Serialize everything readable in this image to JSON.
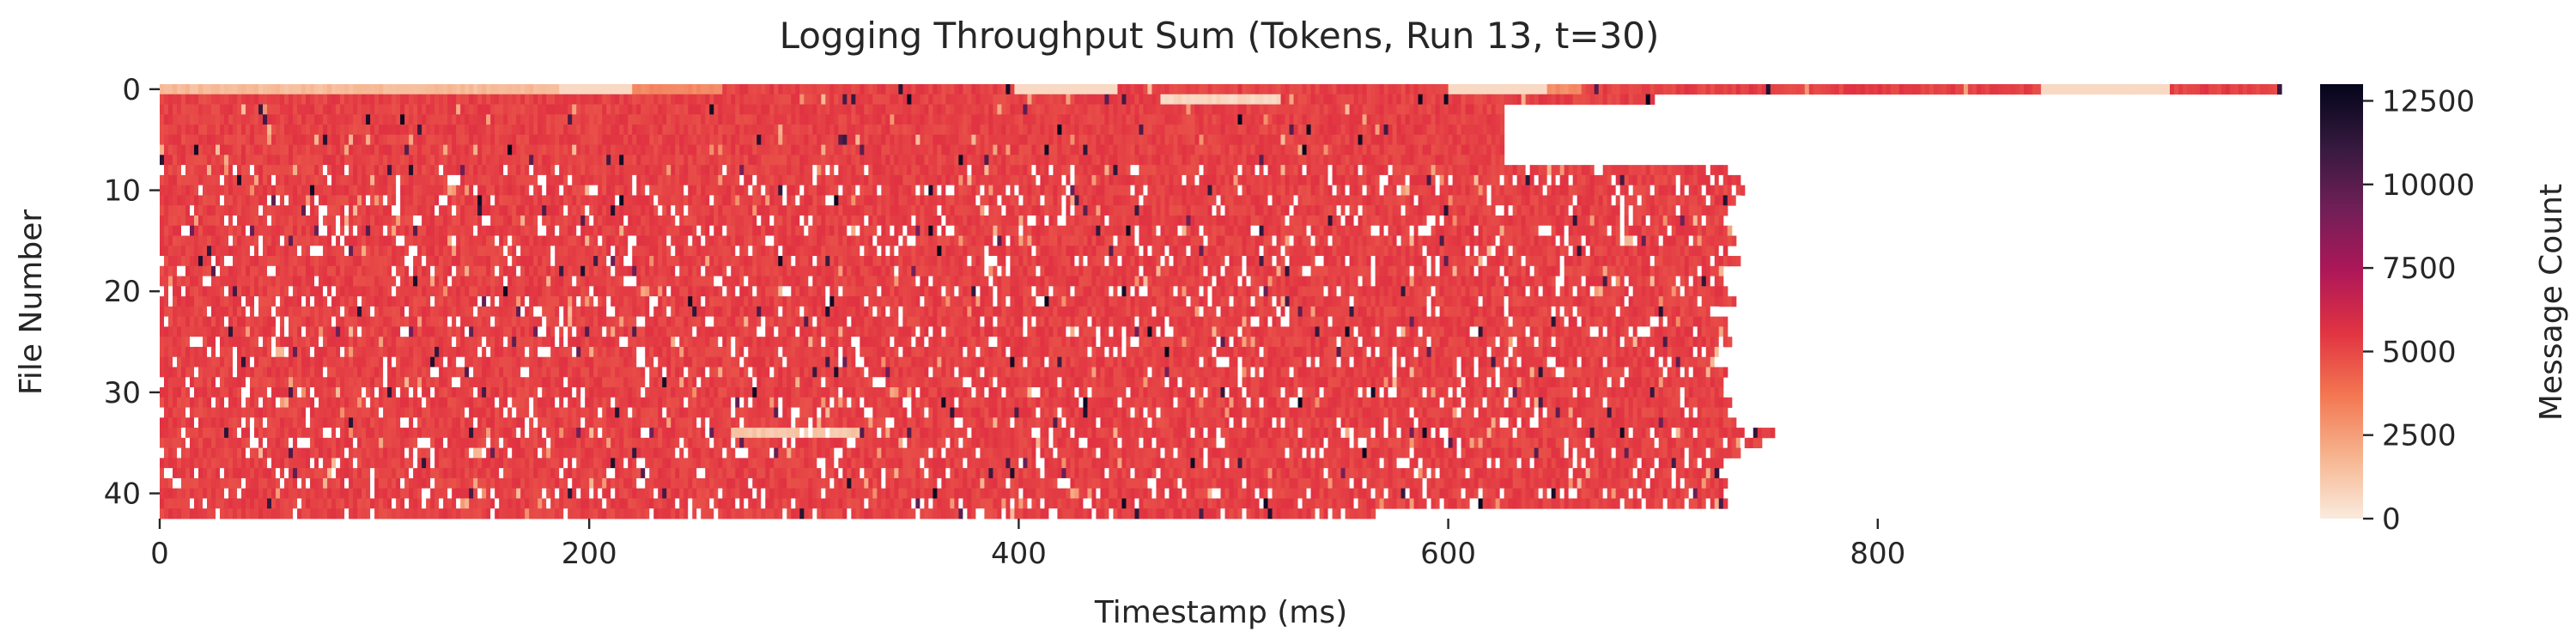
{
  "chart_data": {
    "type": "heatmap",
    "title": "Logging Throughput Sum (Tokens, Run 13, t=30)",
    "xlabel": "Timestamp (ms)",
    "ylabel": "File Number",
    "xlim": [
      0,
      990
    ],
    "ylim": [
      0,
      42
    ],
    "x_ticks": [
      0,
      200,
      400,
      600,
      800
    ],
    "y_ticks": [
      0,
      10,
      20,
      30,
      40
    ],
    "colorbar": {
      "label": "Message Count",
      "range": [
        0,
        13000
      ],
      "ticks": [
        0,
        2500,
        5000,
        7500,
        10000,
        12500
      ],
      "colors": [
        "#faebdd",
        "#f6b48f",
        "#f37651",
        "#e13342",
        "#ad1759",
        "#701f57",
        "#35193e",
        "#03051a"
      ]
    },
    "typical_value": 5200,
    "row_extent_ms": [
      [
        0,
        987
      ],
      [
        1,
        695
      ],
      [
        2,
        625
      ],
      [
        3,
        625
      ],
      [
        4,
        625
      ],
      [
        5,
        625
      ],
      [
        6,
        625
      ],
      [
        7,
        625
      ],
      [
        8,
        730
      ],
      [
        9,
        735
      ],
      [
        10,
        738
      ],
      [
        11,
        735
      ],
      [
        12,
        730
      ],
      [
        13,
        728
      ],
      [
        14,
        732
      ],
      [
        15,
        733
      ],
      [
        16,
        730
      ],
      [
        17,
        735
      ],
      [
        18,
        728
      ],
      [
        19,
        727
      ],
      [
        20,
        730
      ],
      [
        21,
        733
      ],
      [
        22,
        726
      ],
      [
        23,
        730
      ],
      [
        24,
        729
      ],
      [
        25,
        731
      ],
      [
        26,
        728
      ],
      [
        27,
        726
      ],
      [
        28,
        730
      ],
      [
        29,
        728
      ],
      [
        30,
        727
      ],
      [
        31,
        731
      ],
      [
        32,
        729
      ],
      [
        33,
        733
      ],
      [
        34,
        752
      ],
      [
        35,
        745
      ],
      [
        36,
        735
      ],
      [
        37,
        728
      ],
      [
        38,
        726
      ],
      [
        39,
        729
      ],
      [
        40,
        727
      ],
      [
        41,
        730
      ],
      [
        42,
        565
      ]
    ],
    "row_zero_gaps_ms": {
      "0": [
        [
          185,
          220
        ],
        [
          397,
          445
        ],
        [
          600,
          645
        ],
        [
          875,
          935
        ]
      ]
    },
    "low_value_segments": [
      {
        "row": 0,
        "x": [
          0,
          185
        ],
        "value": 1600
      },
      {
        "row": 0,
        "x": [
          220,
          260
        ],
        "value": 3200
      },
      {
        "row": 0,
        "x": [
          645,
          660
        ],
        "value": 3000
      },
      {
        "row": 1,
        "x": [
          465,
          520
        ],
        "value": 700
      },
      {
        "row": 34,
        "x": [
          265,
          325
        ],
        "value": 1200
      }
    ]
  }
}
